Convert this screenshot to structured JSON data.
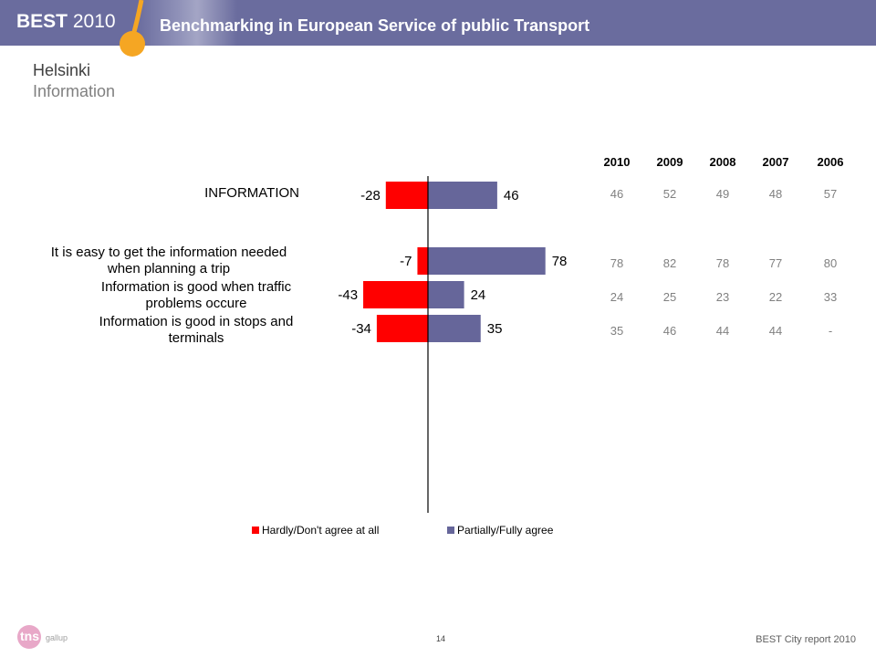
{
  "header": {
    "brand": "BEST",
    "brand_year": "2010",
    "title": "Benchmarking in European Service of public Transport"
  },
  "page": {
    "title": "Helsinki",
    "subtitle": "Information"
  },
  "chart_data": {
    "type": "bar",
    "orientation": "horizontal-diverging",
    "categories": [
      "INFORMATION",
      "It is easy to get the information needed when planning a trip",
      "Information is good when traffic problems occure",
      "Information is good in stops and terminals"
    ],
    "series": [
      {
        "name": "Hardly/Don't agree at all",
        "values": [
          -28,
          -7,
          -43,
          -34
        ],
        "color": "#ff0000"
      },
      {
        "name": "Partially/Fully agree",
        "values": [
          46,
          78,
          24,
          35
        ],
        "color": "#66669a"
      }
    ],
    "data_labels": {
      "negative": [
        "-28",
        "-7",
        "-43",
        "-34"
      ],
      "positive": [
        "46",
        "78",
        "24",
        "35"
      ]
    },
    "legend": "bottom",
    "table": {
      "years": [
        "2010",
        "2009",
        "2008",
        "2007",
        "2006"
      ],
      "rows": [
        [
          "46",
          "52",
          "49",
          "48",
          "57"
        ],
        [
          "78",
          "82",
          "78",
          "77",
          "80"
        ],
        [
          "24",
          "25",
          "23",
          "22",
          "33"
        ],
        [
          "35",
          "46",
          "44",
          "44",
          "-"
        ]
      ]
    }
  },
  "labels": {
    "cat1": "INFORMATION",
    "cat2_line1": "It is easy to get the information needed",
    "cat2_line2": "when planning a trip",
    "cat3_line1": "Information is good when traffic",
    "cat3_line2": "problems occure",
    "cat4_line1": "Information is good in stops and",
    "cat4_line2": "terminals"
  },
  "footer": {
    "page_number": "14",
    "report": "BEST City report 2010",
    "logo_text": "tns",
    "logo_sub": "gallup"
  },
  "colors": {
    "header": "#6a6c9e",
    "accent_orange": "#f5a623",
    "negative": "#ff0000",
    "positive": "#66669a"
  }
}
